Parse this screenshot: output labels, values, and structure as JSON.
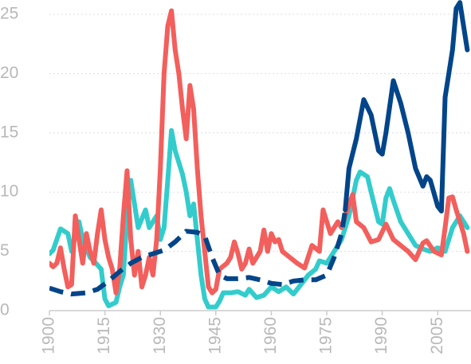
{
  "chart_data": {
    "type": "line",
    "xlim": [
      1900,
      2014
    ],
    "xticks": [
      1900,
      1915,
      1930,
      1945,
      1960,
      1975,
      1990,
      2005
    ],
    "ylim": [
      0,
      25
    ],
    "yticks": [
      0,
      5,
      10,
      15,
      20,
      25
    ],
    "grid": true,
    "series": [
      {
        "color": "#33cccc",
        "dash": false,
        "x": [
          1900,
          1901,
          1903,
          1905,
          1906,
          1908,
          1909,
          1911,
          1912,
          1914,
          1915,
          1916,
          1918,
          1919,
          1920,
          1921,
          1922,
          1923,
          1924,
          1926,
          1927,
          1929,
          1930,
          1931,
          1932,
          1933,
          1934,
          1936,
          1937,
          1938,
          1939,
          1940,
          1941,
          1942,
          1943,
          1945,
          1946,
          1947,
          1949,
          1951,
          1953,
          1954,
          1956,
          1958,
          1960,
          1962,
          1964,
          1966,
          1968,
          1970,
          1972,
          1973,
          1975,
          1977,
          1979,
          1981,
          1983,
          1984,
          1986,
          1987,
          1989,
          1990,
          1991,
          1992,
          1993,
          1995,
          1997,
          1999,
          2001,
          2003,
          2005,
          2007,
          2009,
          2011,
          2013
        ],
        "values": [
          4.8,
          5.1,
          6.9,
          6.5,
          5,
          7.5,
          6,
          4.5,
          4.2,
          3.5,
          1,
          0.4,
          0.7,
          2,
          3,
          8,
          11,
          9,
          7,
          8.5,
          7,
          8,
          6,
          7,
          11,
          15.2,
          13.5,
          11.5,
          10,
          8,
          9,
          6,
          3,
          1,
          0.3,
          0.3,
          0.8,
          1.5,
          1.5,
          1.6,
          1.3,
          1.8,
          1.1,
          1.3,
          2,
          1.6,
          2,
          1.4,
          2.2,
          3,
          3.5,
          4.2,
          4,
          5,
          6,
          8,
          11,
          11.7,
          11.3,
          10,
          7.5,
          7.3,
          9.5,
          10.3,
          9.3,
          7.5,
          6.5,
          5.5,
          5.2,
          5,
          5.3,
          5,
          7,
          8,
          7
        ]
      },
      {
        "color": "#f25f5c",
        "dash": false,
        "x": [
          1900,
          1901,
          1902,
          1903,
          1904,
          1905,
          1906,
          1907,
          1908,
          1909,
          1910,
          1911,
          1912,
          1913,
          1914,
          1915,
          1916,
          1917,
          1918,
          1919,
          1920,
          1921,
          1922,
          1923,
          1924,
          1925,
          1926,
          1927,
          1928,
          1929,
          1930,
          1931,
          1932,
          1933,
          1934,
          1935,
          1936,
          1937,
          1938,
          1939,
          1940,
          1941,
          1942,
          1943,
          1944,
          1945,
          1946,
          1948,
          1949,
          1950,
          1951,
          1952,
          1953,
          1954,
          1955,
          1957,
          1958,
          1959,
          1960,
          1961,
          1962,
          1963,
          1965,
          1967,
          1969,
          1971,
          1973,
          1974,
          1975,
          1976,
          1978,
          1979,
          1980,
          1982,
          1983,
          1985,
          1987,
          1989,
          1991,
          1993,
          1995,
          1997,
          1999,
          2001,
          2002,
          2004,
          2006,
          2007,
          2008,
          2009,
          2010,
          2012,
          2013
        ],
        "values": [
          4,
          3.7,
          4,
          5.3,
          3.5,
          2,
          2.2,
          8,
          6,
          4,
          6.5,
          5,
          4,
          6.5,
          8.5,
          6,
          4.5,
          3.5,
          1.5,
          3.5,
          8,
          11.8,
          6,
          3,
          5,
          2,
          3,
          4.5,
          3,
          6,
          12,
          20,
          24,
          25.3,
          22,
          20,
          17,
          14.5,
          19,
          17,
          12,
          8,
          5,
          2,
          1.5,
          1.8,
          3.5,
          4,
          4.5,
          5.8,
          4.8,
          3.5,
          4,
          5.2,
          4,
          5,
          6.8,
          5,
          6.5,
          5.8,
          6,
          5,
          4.5,
          4,
          3.6,
          5.5,
          5,
          8.5,
          7.5,
          6.5,
          7.5,
          7,
          8,
          9.8,
          7.5,
          7,
          5.8,
          6,
          7.3,
          6,
          5.5,
          5,
          4.3,
          5.7,
          5.9,
          5,
          4.7,
          7,
          9.5,
          9.6,
          8.5,
          6.5,
          5
        ]
      },
      {
        "color": "#034589",
        "dash": true,
        "x": [
          1900,
          1903,
          1906,
          1910,
          1913,
          1916,
          1919,
          1922,
          1925,
          1928,
          1931,
          1934,
          1937,
          1940,
          1942,
          1944,
          1946,
          1948,
          1951,
          1954,
          1957,
          1960,
          1963,
          1966,
          1969,
          1972,
          1975,
          1977,
          1979,
          1980
        ],
        "values": [
          1.9,
          1.6,
          1.4,
          1.5,
          1.8,
          2.5,
          3.3,
          4,
          4.5,
          4.8,
          5.1,
          5.8,
          6.7,
          6.6,
          6.3,
          4.5,
          3,
          2.7,
          2.7,
          2.8,
          2.6,
          2.3,
          2.2,
          2.5,
          2.6,
          2.6,
          3,
          4.5,
          6.5,
          8.5
        ]
      },
      {
        "color": "#034589",
        "dash": false,
        "x": [
          1980,
          1981,
          1983,
          1985,
          1987,
          1989,
          1990,
          1991,
          1993,
          1995,
          1997,
          1999,
          2001,
          2002,
          2003,
          2005,
          2006,
          2007,
          2008,
          2009,
          2010,
          2011,
          2012,
          2013
        ],
        "values": [
          8.5,
          12,
          14.5,
          17.8,
          16.5,
          13.5,
          13.2,
          15,
          19.4,
          17.5,
          15,
          12,
          10.5,
          11.3,
          11,
          8.8,
          8.4,
          18,
          20,
          22,
          25.5,
          26,
          24,
          22
        ]
      }
    ]
  }
}
